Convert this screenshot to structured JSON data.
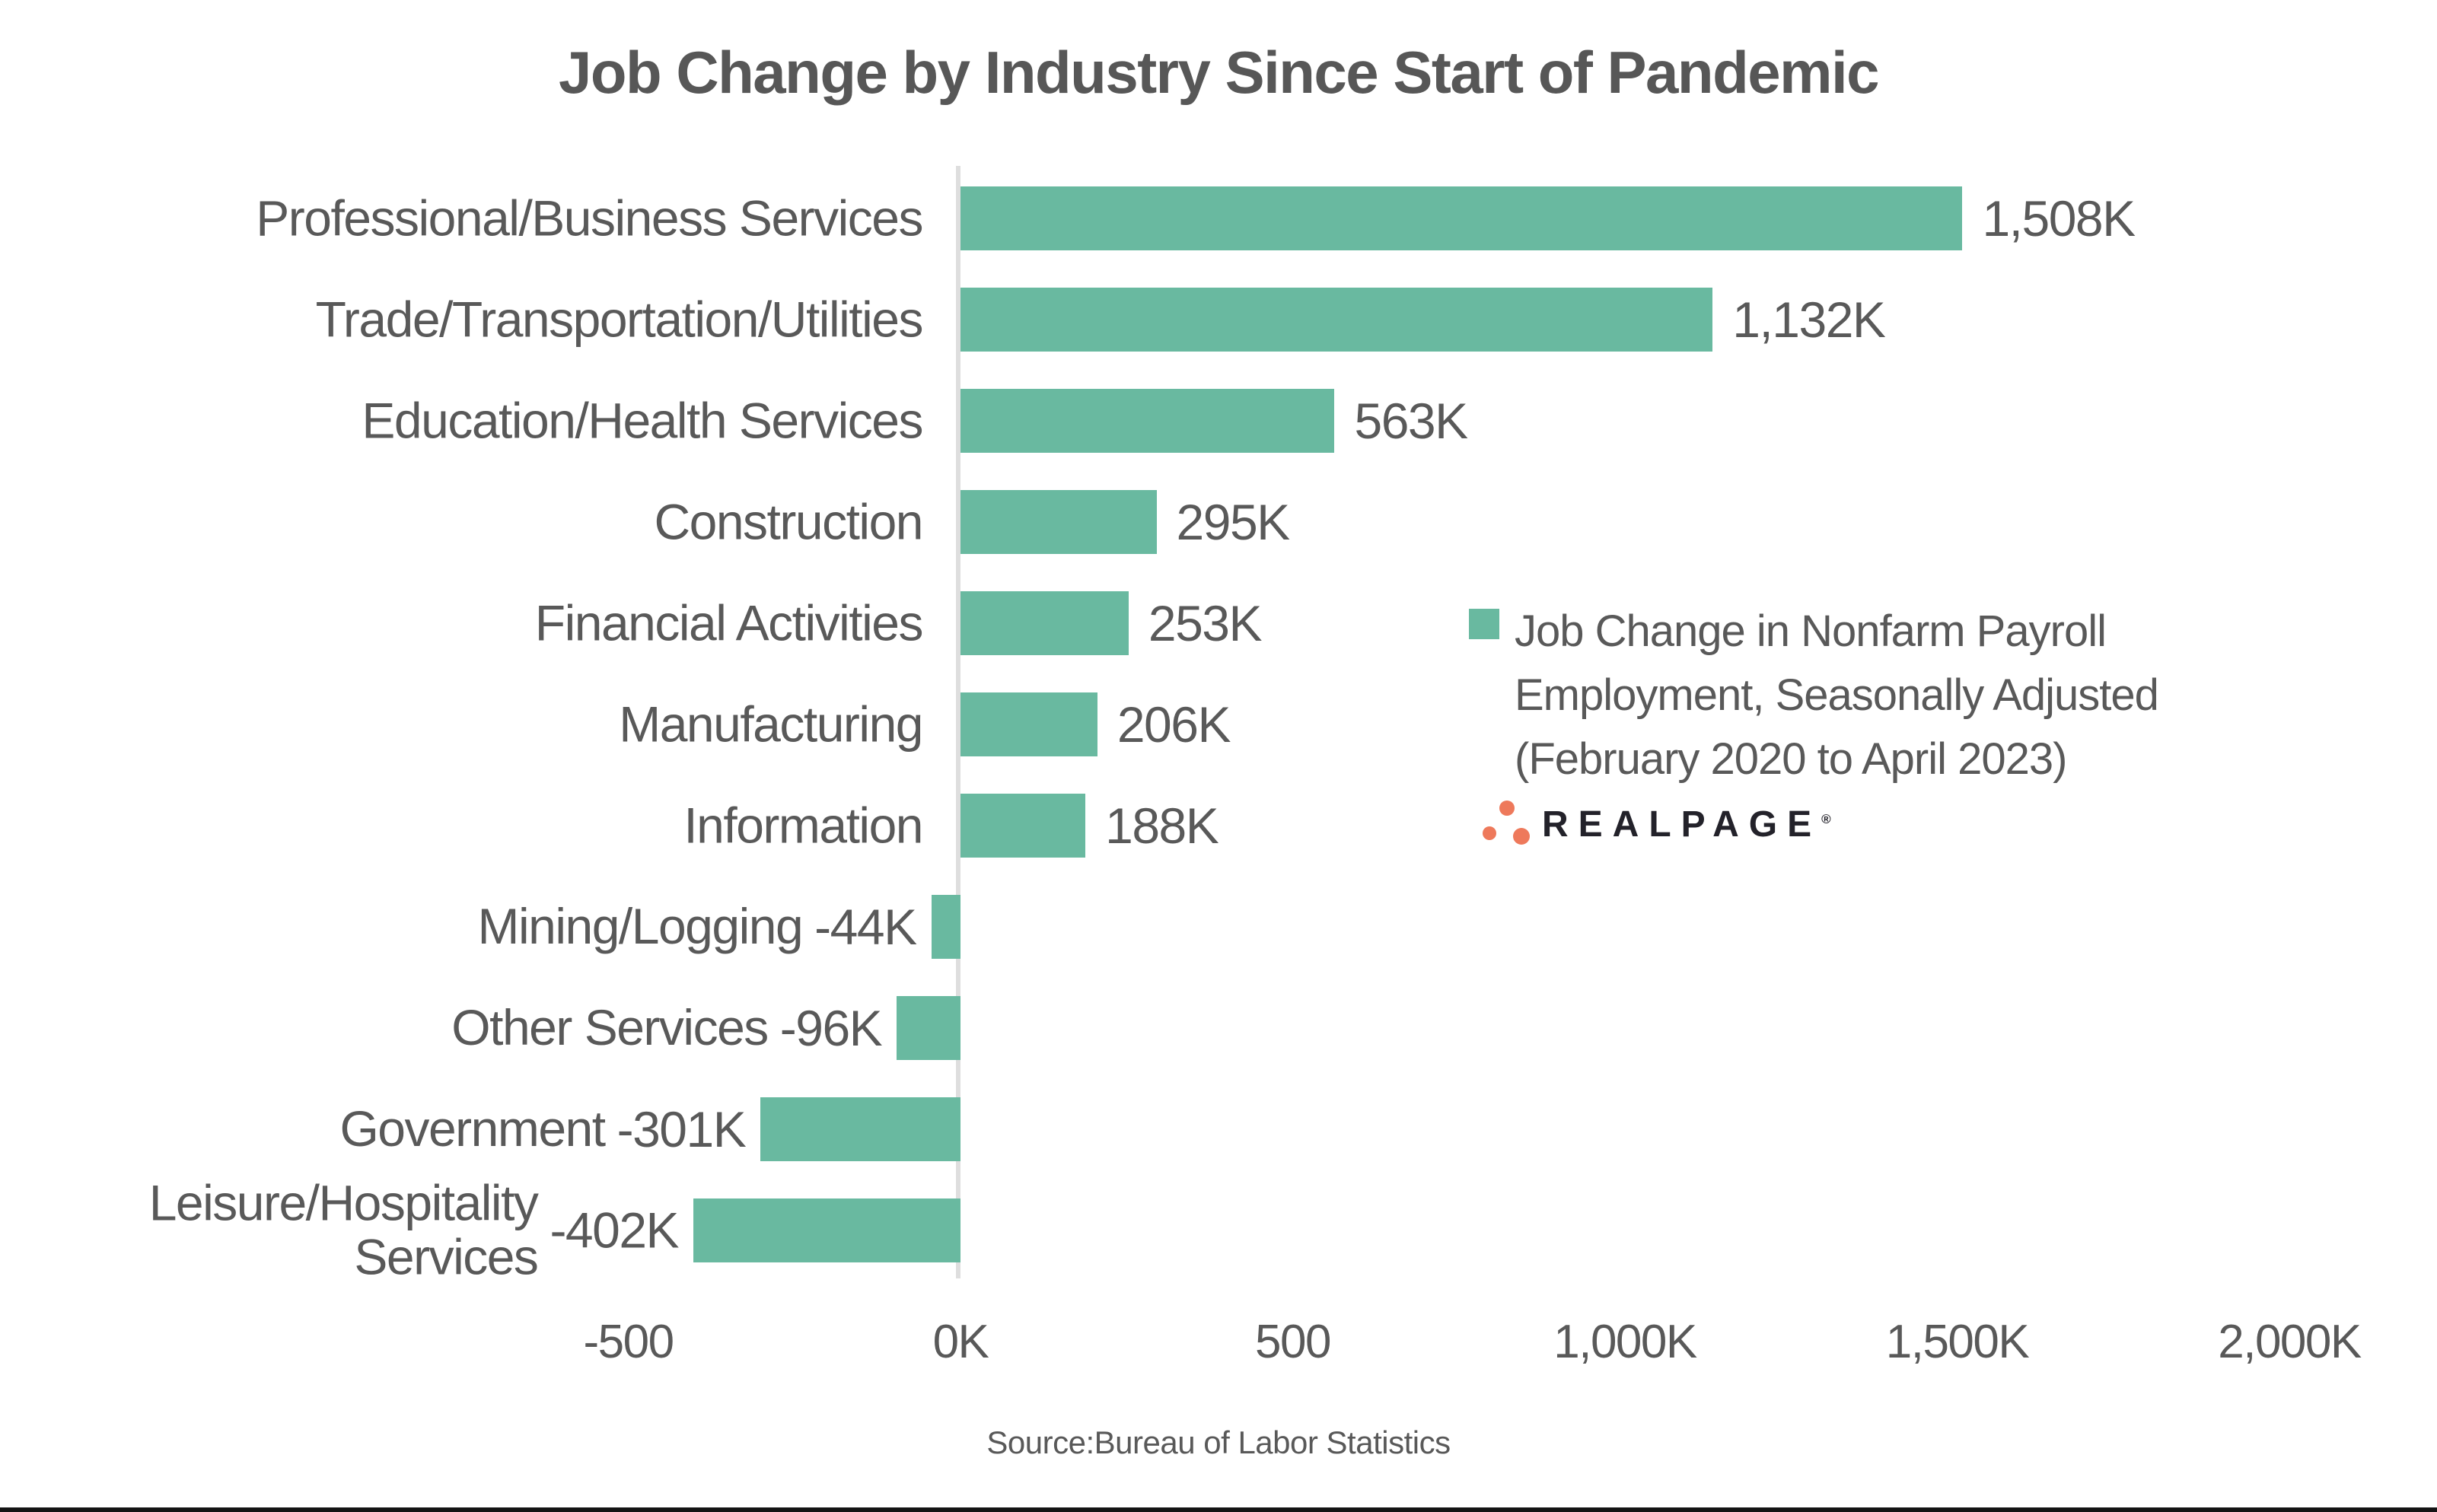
{
  "title": "Job Change by Industry Since Start of Pandemic",
  "source": "Source:Bureau of Labor Statistics",
  "legend": {
    "lines": [
      "Job Change in Nonfarm Payroll",
      "Employment, Seasonally Adjusted",
      "(February 2020 to April 2023)"
    ]
  },
  "logo": {
    "brand": "REALPAGE",
    "registered": "®"
  },
  "colors": {
    "bar": "#69b9a0",
    "text": "#595959",
    "axis_line": "#dedede",
    "logo_dot": "#ee795b",
    "logo_text": "#23222a",
    "bottom_border": "#141414"
  },
  "chart_data": {
    "type": "bar",
    "orientation": "horizontal",
    "title": "Job Change by Industry Since Start of Pandemic",
    "xlabel": "",
    "ylabel": "",
    "unit": "K",
    "xlim": [
      -500,
      2000
    ],
    "grid": false,
    "legend_position": "center-right",
    "categories": [
      [
        "Professional/Business Services"
      ],
      [
        "Trade/Transportation/Utilities"
      ],
      [
        "Education/Health Services"
      ],
      [
        "Construction"
      ],
      [
        "Financial Activities"
      ],
      [
        "Manufacturing"
      ],
      [
        "Information"
      ],
      [
        "Mining/Logging"
      ],
      [
        "Other Services"
      ],
      [
        "Government"
      ],
      [
        "Leisure/Hospitality",
        "Services"
      ]
    ],
    "values": [
      1508,
      1132,
      563,
      295,
      253,
      206,
      188,
      -44,
      -96,
      -301,
      -402
    ],
    "value_labels": [
      "1,508K",
      "1,132K",
      "563K",
      "295K",
      "253K",
      "206K",
      "188K",
      "-44K",
      "-96K",
      "-301K",
      "-402K"
    ],
    "x_ticks": [
      {
        "label": "-500",
        "value": -500
      },
      {
        "label": "0K",
        "value": 0
      },
      {
        "label": "500",
        "value": 500
      },
      {
        "label": "1,000K",
        "value": 1000
      },
      {
        "label": "1,500K",
        "value": 1500
      },
      {
        "label": "2,000K",
        "value": 2000
      }
    ]
  }
}
